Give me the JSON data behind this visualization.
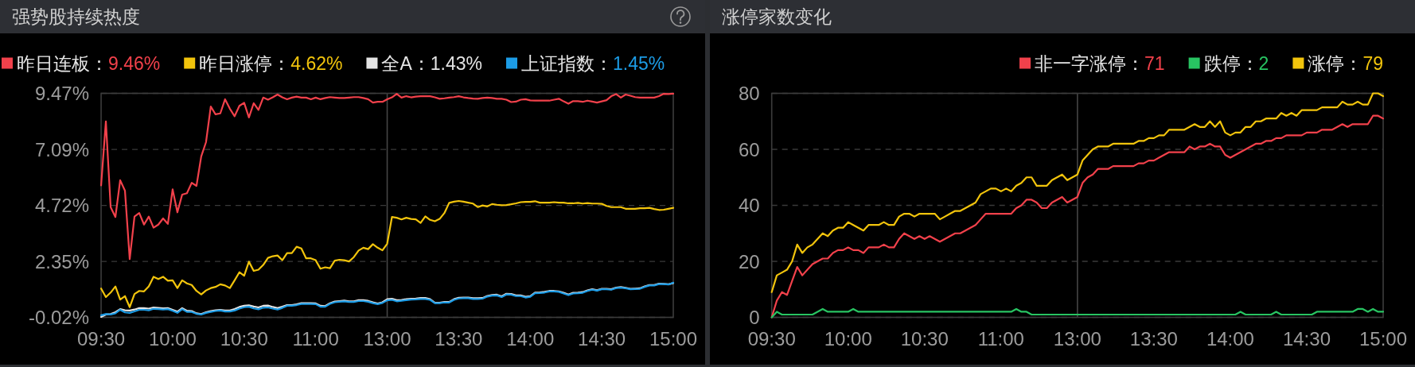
{
  "chart_data": [
    {
      "type": "line",
      "title": "强势股持续热度",
      "legend": "top left",
      "grid": "y",
      "categories": [
        "09:30",
        null,
        null,
        null,
        null,
        null,
        null,
        null,
        null,
        null,
        null,
        null,
        null,
        null,
        null,
        "10:00",
        null,
        null,
        null,
        null,
        null,
        null,
        null,
        null,
        null,
        null,
        null,
        null,
        null,
        null,
        "10:30",
        null,
        null,
        null,
        null,
        null,
        null,
        null,
        null,
        null,
        null,
        null,
        null,
        null,
        null,
        "11:00",
        null,
        null,
        null,
        null,
        null,
        null,
        null,
        null,
        null,
        null,
        null,
        null,
        null,
        null,
        "13:00",
        null,
        null,
        null,
        null,
        null,
        null,
        null,
        null,
        null,
        null,
        null,
        null,
        null,
        null,
        "13:30",
        null,
        null,
        null,
        null,
        null,
        null,
        null,
        null,
        null,
        null,
        null,
        null,
        null,
        null,
        "14:00",
        null,
        null,
        null,
        null,
        null,
        null,
        null,
        null,
        null,
        null,
        null,
        null,
        null,
        null,
        "14:30",
        null,
        null,
        null,
        null,
        null,
        null,
        null,
        null,
        null,
        null,
        null,
        null,
        null,
        null,
        "15:00"
      ],
      "ylim": [
        -0.02,
        9.47
      ],
      "yticks": [
        {
          "value": -0.02,
          "label": "-0.02%"
        },
        {
          "value": 2.35,
          "label": "2.35%"
        },
        {
          "value": 4.72,
          "label": "4.72%"
        },
        {
          "value": 7.09,
          "label": "7.09%"
        },
        {
          "value": 9.47,
          "label": "9.47%"
        }
      ],
      "ref_lines": [
        {
          "axis": "x",
          "value": "13:00",
          "color": "#454545"
        }
      ],
      "series": [
        {
          "name": "昨日连板：9.46%",
          "color": "#f2414b",
          "values": [
            5.57,
            8.28,
            4.65,
            4.23,
            5.79,
            5.35,
            2.45,
            4.25,
            4.4,
            3.91,
            4.25,
            3.78,
            3.91,
            4.17,
            3.94,
            5.4,
            4.43,
            5.18,
            5.24,
            5.68,
            5.55,
            6.8,
            7.4,
            8.91,
            8.58,
            8.62,
            9.22,
            8.82,
            8.5,
            8.94,
            9.07,
            8.45,
            9.05,
            8.77,
            9.29,
            9.2,
            9.3,
            9.42,
            9.3,
            9.22,
            9.29,
            9.33,
            9.29,
            9.29,
            9.22,
            9.29,
            9.22,
            9.27,
            9.31,
            9.29,
            9.27,
            9.27,
            9.29,
            9.31,
            9.31,
            9.27,
            9.22,
            9.08,
            9.11,
            9.11,
            9.22,
            9.3,
            9.45,
            9.29,
            9.35,
            9.3,
            9.33,
            9.35,
            9.35,
            9.35,
            9.3,
            9.24,
            9.26,
            9.29,
            9.31,
            9.35,
            9.3,
            9.27,
            9.25,
            9.24,
            9.27,
            9.29,
            9.27,
            9.24,
            9.24,
            9.2,
            9.1,
            9.12,
            9.2,
            9.22,
            9.17,
            9.16,
            9.16,
            9.16,
            9.16,
            9.2,
            9.24,
            9.13,
            9.03,
            9.14,
            9.14,
            9.11,
            9.16,
            9.12,
            9.08,
            9.13,
            9.18,
            9.35,
            9.44,
            9.29,
            9.42,
            9.37,
            9.31,
            9.29,
            9.29,
            9.29,
            9.29,
            9.35,
            9.45,
            9.44,
            9.46
          ]
        },
        {
          "name": "昨日涨停：4.62%",
          "color": "#f2c40c",
          "values": [
            1.2,
            0.84,
            1.03,
            1.29,
            0.73,
            0.88,
            0.41,
            0.97,
            1.1,
            1.08,
            1.29,
            1.7,
            1.6,
            1.7,
            1.53,
            1.55,
            1.22,
            1.55,
            1.42,
            1.35,
            1.1,
            0.95,
            1.12,
            1.22,
            1.27,
            1.38,
            1.33,
            1.22,
            1.55,
            1.89,
            1.74,
            2.34,
            1.95,
            2.0,
            2.2,
            2.5,
            2.57,
            2.6,
            2.4,
            2.7,
            2.7,
            2.97,
            2.9,
            2.48,
            2.48,
            2.4,
            2.04,
            2.1,
            2.06,
            2.38,
            2.42,
            2.4,
            2.35,
            2.53,
            2.81,
            2.93,
            2.87,
            3.08,
            2.93,
            2.82,
            3.1,
            4.23,
            4.2,
            4.13,
            4.2,
            4.15,
            4.13,
            3.98,
            4.26,
            4.11,
            4.05,
            4.15,
            4.4,
            4.83,
            4.88,
            4.91,
            4.88,
            4.84,
            4.8,
            4.65,
            4.72,
            4.68,
            4.78,
            4.75,
            4.73,
            4.74,
            4.77,
            4.81,
            4.86,
            4.87,
            4.87,
            4.9,
            4.84,
            4.84,
            4.84,
            4.86,
            4.84,
            4.84,
            4.81,
            4.81,
            4.83,
            4.8,
            4.82,
            4.8,
            4.8,
            4.79,
            4.7,
            4.65,
            4.65,
            4.65,
            4.58,
            4.58,
            4.58,
            4.6,
            4.6,
            4.62,
            4.57,
            4.53,
            4.54,
            4.58,
            4.62
          ]
        },
        {
          "name": "全A：1.43%",
          "color": "#e4e4e4",
          "values": [
            0.0,
            0.1,
            0.12,
            0.2,
            0.33,
            0.28,
            0.27,
            0.31,
            0.37,
            0.37,
            0.35,
            0.4,
            0.38,
            0.36,
            0.37,
            0.3,
            0.22,
            0.37,
            0.26,
            0.25,
            0.15,
            0.12,
            0.2,
            0.25,
            0.28,
            0.3,
            0.27,
            0.27,
            0.33,
            0.42,
            0.47,
            0.49,
            0.44,
            0.4,
            0.47,
            0.48,
            0.42,
            0.37,
            0.43,
            0.5,
            0.5,
            0.53,
            0.58,
            0.58,
            0.58,
            0.57,
            0.47,
            0.46,
            0.58,
            0.65,
            0.67,
            0.69,
            0.66,
            0.66,
            0.71,
            0.71,
            0.68,
            0.62,
            0.57,
            0.62,
            0.75,
            0.77,
            0.71,
            0.72,
            0.75,
            0.77,
            0.78,
            0.8,
            0.8,
            0.75,
            0.6,
            0.6,
            0.63,
            0.63,
            0.75,
            0.81,
            0.82,
            0.82,
            0.79,
            0.79,
            0.8,
            0.89,
            0.93,
            0.94,
            0.87,
            0.98,
            0.97,
            0.91,
            0.91,
            0.85,
            0.88,
            1.03,
            1.04,
            1.06,
            1.1,
            1.1,
            1.08,
            1.02,
            0.95,
            1.02,
            1.03,
            1.05,
            1.12,
            1.17,
            1.13,
            1.19,
            1.19,
            1.17,
            1.24,
            1.26,
            1.23,
            1.19,
            1.2,
            1.21,
            1.29,
            1.35,
            1.35,
            1.41,
            1.4,
            1.38,
            1.43
          ]
        },
        {
          "name": "上证指数：1.45%",
          "color": "#1c9ce6",
          "values": [
            0.07,
            0.12,
            0.1,
            0.15,
            0.3,
            0.19,
            0.17,
            0.23,
            0.3,
            0.3,
            0.28,
            0.34,
            0.33,
            0.31,
            0.33,
            0.26,
            0.17,
            0.33,
            0.21,
            0.21,
            0.13,
            0.1,
            0.17,
            0.21,
            0.25,
            0.27,
            0.23,
            0.23,
            0.27,
            0.35,
            0.41,
            0.43,
            0.36,
            0.32,
            0.39,
            0.4,
            0.35,
            0.31,
            0.38,
            0.47,
            0.47,
            0.5,
            0.55,
            0.55,
            0.55,
            0.54,
            0.43,
            0.43,
            0.55,
            0.62,
            0.64,
            0.66,
            0.63,
            0.63,
            0.67,
            0.67,
            0.64,
            0.58,
            0.54,
            0.59,
            0.7,
            0.72,
            0.66,
            0.68,
            0.71,
            0.73,
            0.74,
            0.76,
            0.76,
            0.72,
            0.58,
            0.58,
            0.61,
            0.61,
            0.72,
            0.78,
            0.79,
            0.79,
            0.76,
            0.76,
            0.77,
            0.86,
            0.9,
            0.91,
            0.84,
            0.95,
            0.94,
            0.88,
            0.88,
            0.82,
            0.85,
            1.0,
            1.01,
            1.03,
            1.08,
            1.08,
            1.06,
            0.99,
            0.92,
            0.99,
            1.0,
            1.02,
            1.1,
            1.15,
            1.11,
            1.17,
            1.17,
            1.15,
            1.22,
            1.24,
            1.21,
            1.17,
            1.18,
            1.19,
            1.27,
            1.33,
            1.33,
            1.39,
            1.39,
            1.37,
            1.45
          ]
        }
      ]
    },
    {
      "type": "line",
      "title": "涨停家数变化",
      "legend": "top right",
      "grid": "y",
      "categories": [
        "09:30",
        null,
        null,
        null,
        null,
        null,
        null,
        null,
        null,
        null,
        null,
        null,
        null,
        null,
        null,
        "10:00",
        null,
        null,
        null,
        null,
        null,
        null,
        null,
        null,
        null,
        null,
        null,
        null,
        null,
        null,
        "10:30",
        null,
        null,
        null,
        null,
        null,
        null,
        null,
        null,
        null,
        null,
        null,
        null,
        null,
        null,
        "11:00",
        null,
        null,
        null,
        null,
        null,
        null,
        null,
        null,
        null,
        null,
        null,
        null,
        null,
        null,
        "13:00",
        null,
        null,
        null,
        null,
        null,
        null,
        null,
        null,
        null,
        null,
        null,
        null,
        null,
        null,
        "13:30",
        null,
        null,
        null,
        null,
        null,
        null,
        null,
        null,
        null,
        null,
        null,
        null,
        null,
        null,
        "14:00",
        null,
        null,
        null,
        null,
        null,
        null,
        null,
        null,
        null,
        null,
        null,
        null,
        null,
        null,
        "14:30",
        null,
        null,
        null,
        null,
        null,
        null,
        null,
        null,
        null,
        null,
        null,
        null,
        null,
        null,
        "15:00"
      ],
      "ylim": [
        0,
        80
      ],
      "yticks": [
        0,
        20,
        40,
        60,
        80
      ],
      "ref_lines": [
        {
          "axis": "x",
          "value": "13:00",
          "color": "#454545"
        }
      ],
      "series": [
        {
          "name": "非一字涨停：71",
          "color": "#f2414b",
          "values": [
            0,
            6,
            9,
            8,
            13,
            18,
            15,
            17,
            19,
            20,
            21,
            21,
            23,
            24,
            24,
            25,
            24,
            24,
            23,
            25,
            25,
            25,
            26,
            25,
            25,
            28,
            30,
            29,
            28,
            29,
            28,
            29,
            28,
            27,
            28,
            29,
            30,
            30,
            31,
            32,
            33,
            35,
            37,
            37,
            37,
            37,
            37,
            37,
            39,
            40,
            42,
            42,
            41,
            39,
            39,
            41,
            42,
            43,
            41,
            42,
            43,
            48,
            50,
            51,
            53,
            53,
            53,
            54,
            54,
            54,
            54,
            54,
            55,
            55,
            56,
            56,
            57,
            58,
            59,
            59,
            59,
            59,
            61,
            60,
            61,
            61,
            62,
            61,
            61,
            58,
            57,
            58,
            59,
            60,
            61,
            62,
            62,
            63,
            63,
            64,
            64,
            65,
            65,
            65,
            65,
            66,
            66,
            66,
            67,
            67,
            67,
            68,
            69,
            68,
            69,
            69,
            69,
            69,
            72,
            72,
            71
          ]
        },
        {
          "name": "跌停：2",
          "color": "#28c462",
          "values": [
            0,
            2,
            1,
            1,
            1,
            1,
            1,
            1,
            1,
            2,
            3,
            2,
            2,
            2,
            2,
            2,
            3,
            2,
            2,
            2,
            2,
            2,
            2,
            2,
            2,
            2,
            2,
            2,
            2,
            2,
            2,
            2,
            2,
            2,
            2,
            2,
            2,
            2,
            2,
            2,
            2,
            2,
            2,
            2,
            2,
            2,
            2,
            2,
            3,
            2,
            2,
            1,
            1,
            1,
            1,
            1,
            1,
            1,
            1,
            1,
            1,
            1,
            1,
            1,
            1,
            1,
            1,
            1,
            1,
            1,
            1,
            1,
            1,
            1,
            1,
            1,
            1,
            1,
            1,
            1,
            1,
            1,
            1,
            1,
            1,
            1,
            1,
            1,
            1,
            1,
            1,
            1,
            2,
            1,
            1,
            1,
            1,
            1,
            1,
            2,
            1,
            1,
            1,
            1,
            1,
            1,
            1,
            2,
            2,
            2,
            2,
            2,
            2,
            2,
            2,
            3,
            3,
            2,
            3,
            2,
            2
          ]
        },
        {
          "name": "涨停：79",
          "color": "#f2c40c",
          "values": [
            9,
            15,
            16,
            17,
            20,
            26,
            23,
            25,
            26,
            28,
            30,
            29,
            31,
            32,
            32,
            34,
            33,
            32,
            31,
            33,
            33,
            33,
            34,
            33,
            33,
            36,
            37,
            37,
            36,
            37,
            37,
            37,
            37,
            35,
            36,
            37,
            38,
            38,
            39,
            40,
            41,
            44,
            45,
            46,
            46,
            45,
            46,
            45,
            47,
            48,
            50,
            50,
            47,
            47,
            47,
            49,
            50,
            51,
            49,
            50,
            51,
            56,
            58,
            60,
            61,
            61,
            61,
            62,
            62,
            62,
            62,
            62,
            63,
            63,
            64,
            64,
            65,
            65,
            67,
            67,
            67,
            67,
            68,
            69,
            68,
            68,
            70,
            68,
            70,
            66,
            65,
            66,
            66,
            68,
            68,
            70,
            70,
            71,
            71,
            71,
            73,
            72,
            73,
            72,
            74,
            74,
            74,
            74,
            75,
            75,
            75,
            75,
            77,
            76,
            76,
            77,
            76,
            76,
            80,
            80,
            79
          ]
        }
      ]
    }
  ]
}
